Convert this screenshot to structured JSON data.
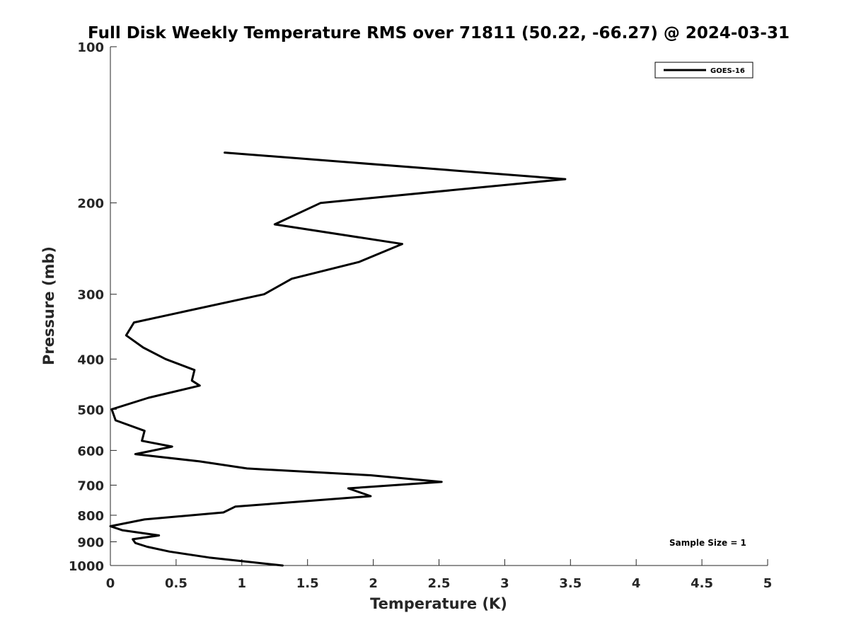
{
  "chart_data": {
    "type": "line",
    "title": "Full Disk Weekly Temperature RMS over 71811 (50.22, -66.27) @ 2024-03-31",
    "xlabel": "Temperature (K)",
    "ylabel": "Pressure (mb)",
    "xlim": [
      0,
      5
    ],
    "ylim": [
      100,
      1000
    ],
    "y_scale": "log",
    "y_reversed": true,
    "x_ticks": [
      0,
      0.5,
      1,
      1.5,
      2,
      2.5,
      3,
      3.5,
      4,
      4.5,
      5
    ],
    "x_tick_labels": [
      "0",
      "0.5",
      "1",
      "1.5",
      "2",
      "2.5",
      "3",
      "3.5",
      "4",
      "4.5",
      "5"
    ],
    "y_ticks": [
      100,
      200,
      300,
      400,
      500,
      600,
      700,
      800,
      900,
      1000
    ],
    "y_tick_labels": [
      "100",
      "200",
      "300",
      "400",
      "500",
      "600",
      "700",
      "800",
      "900",
      "1000"
    ],
    "grid": false,
    "legend_position": "top-right",
    "annotation": "Sample Size = 1",
    "series": [
      {
        "name": "GOES-16",
        "color": "#000000",
        "x": [
          0.87,
          3.46,
          1.6,
          1.25,
          2.22,
          1.89,
          1.38,
          1.17,
          0.18,
          0.12,
          0.25,
          0.42,
          0.64,
          0.62,
          0.68,
          0.29,
          0.01,
          0.04,
          0.26,
          0.24,
          0.47,
          0.19,
          0.68,
          1.04,
          1.98,
          2.52,
          1.81,
          1.98,
          0.95,
          0.86,
          0.26,
          0.0,
          0.09,
          0.37,
          0.17,
          0.19,
          0.28,
          0.45,
          0.75,
          1.31
        ],
        "y": [
          160,
          180,
          200,
          220,
          240,
          260,
          280,
          300,
          340,
          360,
          380,
          400,
          420,
          440,
          450,
          475,
          500,
          525,
          550,
          575,
          590,
          610,
          630,
          650,
          670,
          690,
          710,
          735,
          770,
          790,
          815,
          840,
          855,
          875,
          890,
          905,
          920,
          940,
          965,
          1000
        ]
      }
    ]
  }
}
